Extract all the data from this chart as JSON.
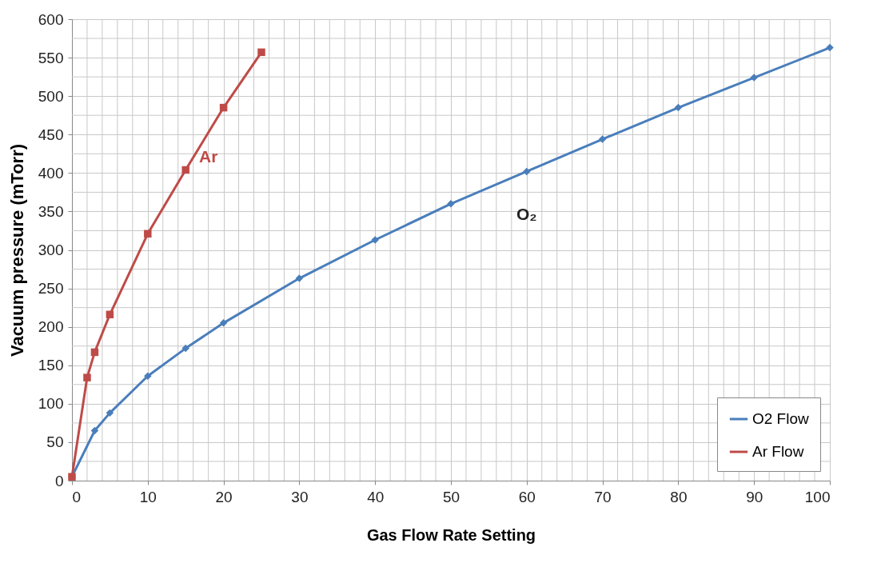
{
  "chart_data": {
    "type": "line",
    "xlabel": "Gas Flow Rate Setting",
    "ylabel": "Vacuum pressure (mTorr)",
    "xlim": [
      0,
      100
    ],
    "ylim": [
      0,
      600
    ],
    "xticks": [
      0,
      {
        "value": 2,
        "label": null
      },
      {
        "value": 4,
        "label": null
      },
      {
        "value": 6,
        "label": null
      },
      {
        "value": 8,
        "label": null
      },
      10,
      {
        "value": 12,
        "label": null
      },
      {
        "value": 14,
        "label": null
      },
      {
        "value": 16,
        "label": null
      },
      {
        "value": 18,
        "label": null
      },
      20,
      {
        "value": 22,
        "label": null
      },
      {
        "value": 24,
        "label": null
      },
      {
        "value": 26,
        "label": null
      },
      {
        "value": 28,
        "label": null
      },
      30,
      {
        "value": 32,
        "label": null
      },
      {
        "value": 34,
        "label": null
      },
      {
        "value": 36,
        "label": null
      },
      {
        "value": 38,
        "label": null
      },
      40,
      {
        "value": 42,
        "label": null
      },
      {
        "value": 44,
        "label": null
      },
      {
        "value": 46,
        "label": null
      },
      {
        "value": 48,
        "label": null
      },
      50,
      {
        "value": 52,
        "label": null
      },
      {
        "value": 54,
        "label": null
      },
      {
        "value": 56,
        "label": null
      },
      {
        "value": 58,
        "label": null
      },
      60,
      {
        "value": 62,
        "label": null
      },
      {
        "value": 64,
        "label": null
      },
      {
        "value": 66,
        "label": null
      },
      {
        "value": 68,
        "label": null
      },
      70,
      {
        "value": 72,
        "label": null
      },
      {
        "value": 74,
        "label": null
      },
      {
        "value": 76,
        "label": null
      },
      {
        "value": 78,
        "label": null
      },
      80,
      {
        "value": 82,
        "label": null
      },
      {
        "value": 84,
        "label": null
      },
      {
        "value": 86,
        "label": null
      },
      {
        "value": 88,
        "label": null
      },
      90,
      {
        "value": 92,
        "label": null
      },
      {
        "value": 94,
        "label": null
      },
      {
        "value": 96,
        "label": null
      },
      {
        "value": 98,
        "label": null
      },
      100
    ],
    "yticks": [
      0,
      {
        "value": 25,
        "label": null
      },
      50,
      {
        "value": 75,
        "label": null
      },
      100,
      {
        "value": 125,
        "label": null
      },
      150,
      {
        "value": 175,
        "label": null
      },
      200,
      {
        "value": 225,
        "label": null
      },
      250,
      {
        "value": 275,
        "label": null
      },
      300,
      {
        "value": 325,
        "label": null
      },
      350,
      {
        "value": 375,
        "label": null
      },
      400,
      {
        "value": 425,
        "label": null
      },
      450,
      {
        "value": 475,
        "label": null
      },
      500,
      {
        "value": 525,
        "label": null
      },
      550,
      {
        "value": 575,
        "label": null
      },
      600
    ],
    "grid": true,
    "legend": "bottom right",
    "line_style": "solid",
    "series": [
      {
        "name": "O2 Flow",
        "color": "#4a7ebb",
        "marker": "diamond",
        "x": [
          0,
          3,
          5,
          10,
          15,
          20,
          30,
          40,
          50,
          60,
          70,
          80,
          90,
          100
        ],
        "values": [
          5,
          65,
          88,
          136,
          172,
          205,
          263,
          313,
          360,
          402,
          444,
          485,
          524,
          563
        ]
      },
      {
        "name": "Ar Flow",
        "color": "#be4b48",
        "marker": "square",
        "x": [
          0,
          2,
          3,
          5,
          10,
          15,
          20,
          25
        ],
        "values": [
          5,
          134,
          167,
          216,
          321,
          404,
          485,
          557
        ]
      }
    ],
    "annotations": [
      "Ar",
      "O₂"
    ]
  }
}
